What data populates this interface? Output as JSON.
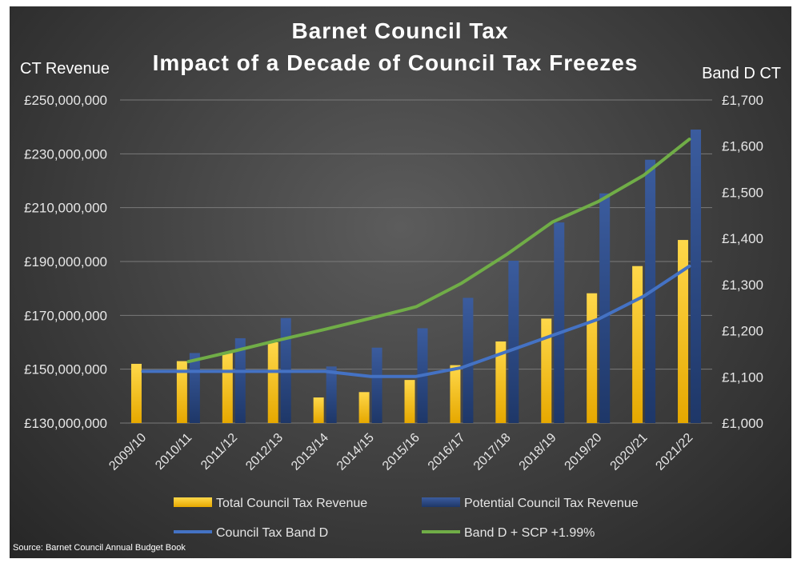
{
  "chart_data": {
    "type": "bar",
    "title": "Barnet Council Tax",
    "subtitle": "Impact of a Decade of Council Tax Freezes",
    "ylabel_left": "CT Revenue",
    "ylabel_right": "Band D CT",
    "ylim_left": [
      130000000,
      250000000
    ],
    "ylim_right": [
      1000,
      1700
    ],
    "yticks_left": [
      "£130,000,000",
      "£150,000,000",
      "£170,000,000",
      "£190,000,000",
      "£210,000,000",
      "£230,000,000",
      "£250,000,000"
    ],
    "yticks_right": [
      "£1,000",
      "£1,100",
      "£1,200",
      "£1,300",
      "£1,400",
      "£1,500",
      "£1,600",
      "£1,700"
    ],
    "categories": [
      "2009/10",
      "2010/11",
      "2011/12",
      "2012/13",
      "2013/14",
      "2014/15",
      "2015/16",
      "2016/17",
      "2017/18",
      "2018/19",
      "2019/20",
      "2020/21",
      "2021/22"
    ],
    "series": [
      {
        "name": "Total Council Tax Revenue",
        "type": "bar",
        "axis": "left",
        "color": "#FFC000",
        "values": [
          152000000,
          153000000,
          156000000,
          160000000,
          139500000,
          141500000,
          146000000,
          151500000,
          160300000,
          168800000,
          178200000,
          188300000,
          198000000
        ]
      },
      {
        "name": "Potential Council Tax Revenue",
        "type": "bar",
        "axis": "left",
        "color": "#2F4F8F",
        "values": [
          null,
          156000000,
          161500000,
          169000000,
          151000000,
          158000000,
          165200000,
          176500000,
          190300000,
          204500000,
          215300000,
          227800000,
          239000000
        ]
      },
      {
        "name": "Council Tax Band D",
        "type": "line",
        "axis": "right",
        "color": "#4472C4",
        "values": [
          1112,
          1112,
          1112,
          1112,
          1112,
          1101,
          1101,
          1120,
          1155,
          1190,
          1225,
          1275,
          1340
        ]
      },
      {
        "name": "Band D + SCP +1.99%",
        "type": "line",
        "axis": "right",
        "color": "#70AD47",
        "values": [
          null,
          1133,
          1156,
          1180,
          1203,
          1227,
          1252,
          1303,
          1366,
          1436,
          1480,
          1537,
          1615
        ]
      }
    ],
    "legend_position": "bottom",
    "source": "Source: Barnet Council Annual Budget Book"
  }
}
